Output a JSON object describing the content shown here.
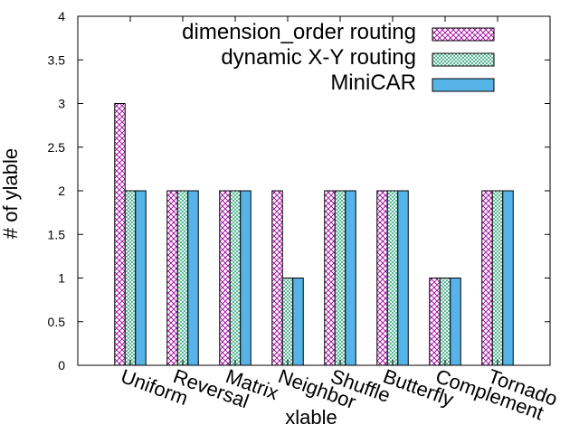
{
  "chart_data": {
    "type": "bar",
    "xlabel": "xlable",
    "ylabel": "# of ylable",
    "ylim": [
      0,
      4
    ],
    "yticks": [
      "0",
      "0.5",
      "1",
      "1.5",
      "2",
      "2.5",
      "3",
      "3.5",
      "4"
    ],
    "categories": [
      "Uniform",
      "Reversal",
      "Matrix",
      "Neighbor",
      "Shuffle",
      "Butterfly",
      "Complement",
      "Tornado"
    ],
    "series": [
      {
        "name": "dimension_order routing",
        "values": [
          3,
          2,
          2,
          2,
          2,
          2,
          1,
          2
        ],
        "pattern": "crosshatch",
        "color": "#a000a0"
      },
      {
        "name": "dynamic X-Y routing",
        "values": [
          2,
          2,
          2,
          1,
          2,
          2,
          1,
          2
        ],
        "pattern": "dots",
        "color": "#009060"
      },
      {
        "name": "MiniCAR",
        "values": [
          2,
          2,
          2,
          1,
          2,
          2,
          1,
          2
        ],
        "pattern": "solid",
        "color": "#56b4e9"
      }
    ],
    "legend_position": "top-right",
    "grid": false
  }
}
